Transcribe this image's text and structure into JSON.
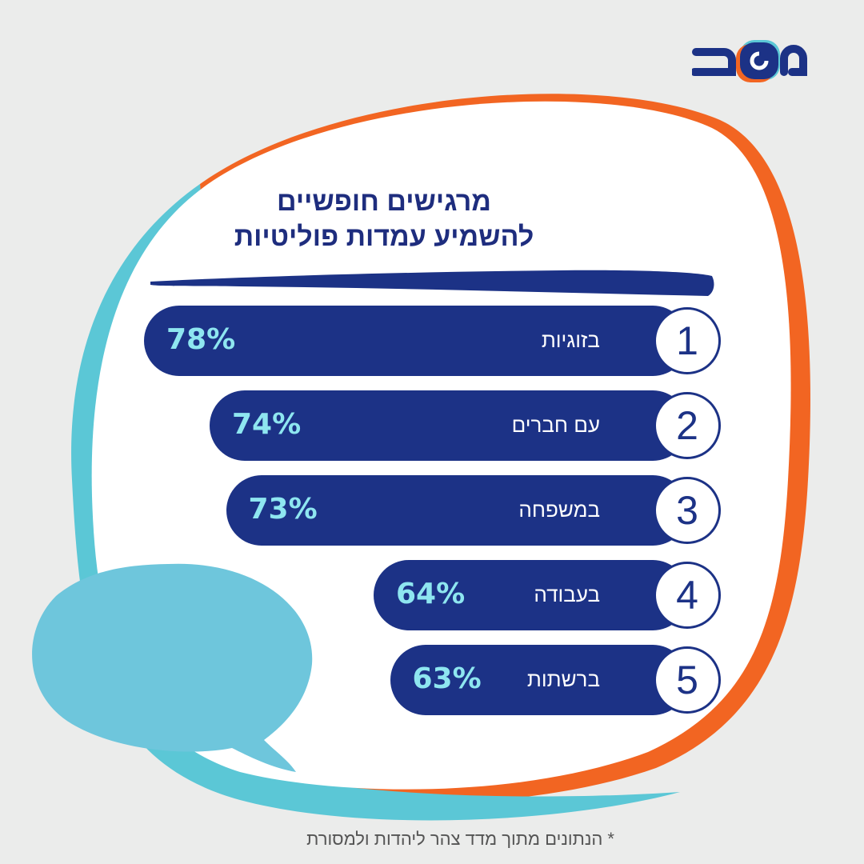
{
  "logo": {
    "text": "משב",
    "colors": [
      "#1c3286",
      "#f26522",
      "#5bc7d6"
    ]
  },
  "colors": {
    "bar": "#1c3286",
    "percent": "#8ee6f0",
    "orange": "#f26522",
    "cyan": "#5bc7d6",
    "bubble": "#6ec6dc"
  },
  "chart_data": {
    "type": "bar",
    "orientation": "horizontal",
    "title": "מרגישים חופשיים להשמיע עמדות פוליטיות",
    "title_lines": [
      "מרגישים חופשיים",
      "להשמיע עמדות פוליטיות"
    ],
    "ranks": [
      "1",
      "2",
      "3",
      "4",
      "5"
    ],
    "categories": [
      "בזוגיות",
      "עם חברים",
      "במשפחה",
      "בעבודה",
      "ברשתות"
    ],
    "values": [
      78,
      74,
      73,
      64,
      63
    ],
    "value_labels": [
      "78%",
      "74%",
      "73%",
      "64%",
      "63%"
    ],
    "unit": "%"
  },
  "footnote": "* הנתונים מתוך מדד צהר ליהדות ולמסורת"
}
